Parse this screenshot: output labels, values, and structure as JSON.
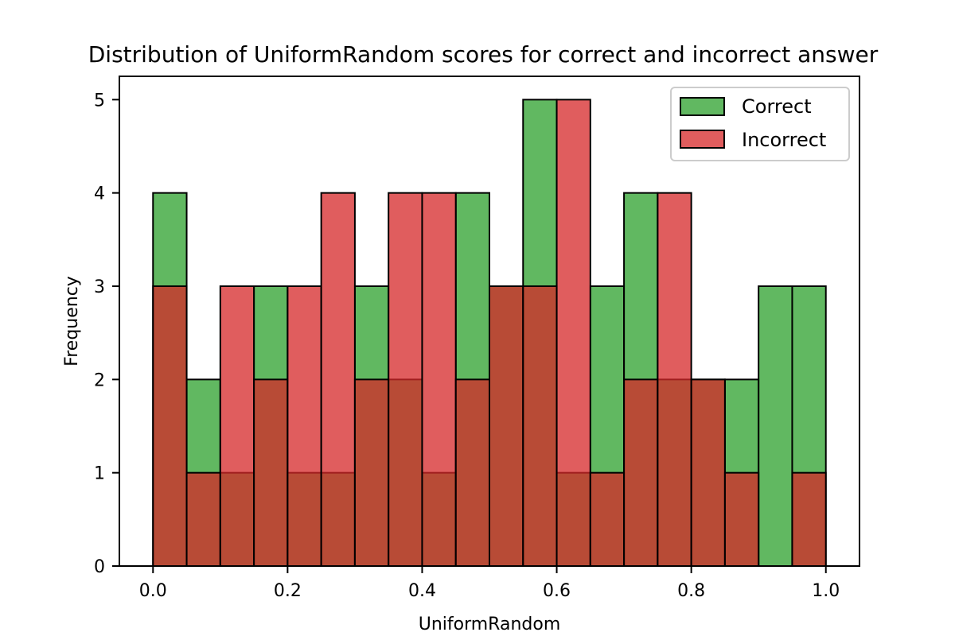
{
  "chart_data": {
    "type": "histogram",
    "title": "Distribution of UniformRandom scores for correct and incorrect answer",
    "xlabel": "UniformRandom",
    "ylabel": "Frequency",
    "xlim": [
      -0.05,
      1.05
    ],
    "ylim": [
      0,
      5.25
    ],
    "xticks": [
      "0.0",
      "0.2",
      "0.4",
      "0.6",
      "0.8",
      "1.0"
    ],
    "yticks": [
      "0",
      "1",
      "2",
      "3",
      "4",
      "5"
    ],
    "bin_edges": [
      0.0,
      0.05,
      0.1,
      0.15,
      0.2,
      0.25,
      0.3,
      0.35,
      0.4,
      0.45,
      0.5,
      0.55,
      0.6,
      0.65,
      0.7,
      0.75,
      0.8,
      0.85,
      0.9,
      0.95,
      1.0
    ],
    "series": [
      {
        "name": "Correct",
        "color": "#2ca02c",
        "opacity": 0.75,
        "values": [
          4,
          2,
          1,
          3,
          1,
          1,
          3,
          2,
          1,
          4,
          3,
          5,
          1,
          3,
          4,
          2,
          2,
          2,
          3,
          3
        ]
      },
      {
        "name": "Incorrect",
        "color": "#d62728",
        "opacity": 0.75,
        "values": [
          3,
          1,
          3,
          2,
          3,
          4,
          2,
          4,
          4,
          2,
          3,
          3,
          5,
          1,
          2,
          4,
          2,
          1,
          0,
          1
        ]
      }
    ],
    "legend_position": "top-right",
    "grid": false
  }
}
